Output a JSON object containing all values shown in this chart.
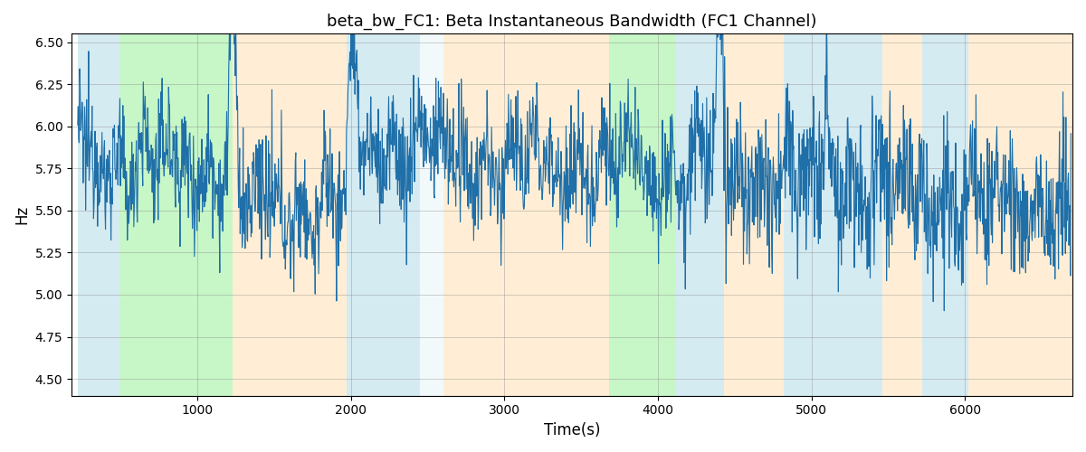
{
  "title": "beta_bw_FC1: Beta Instantaneous Bandwidth (FC1 Channel)",
  "xlabel": "Time(s)",
  "ylabel": "Hz",
  "ylim": [
    4.4,
    6.55
  ],
  "xlim": [
    180,
    6700
  ],
  "yticks": [
    4.5,
    4.75,
    5.0,
    5.25,
    5.5,
    5.75,
    6.0,
    6.25,
    6.5
  ],
  "line_color": "#1f6fa8",
  "line_width": 0.8,
  "background_color": "#ffffff",
  "bands": [
    {
      "xmin": 220,
      "xmax": 490,
      "color": "#add8e6",
      "alpha": 0.5
    },
    {
      "xmin": 490,
      "xmax": 1230,
      "color": "#90ee90",
      "alpha": 0.5
    },
    {
      "xmin": 1230,
      "xmax": 1970,
      "color": "#ffdead",
      "alpha": 0.5
    },
    {
      "xmin": 1970,
      "xmax": 2450,
      "color": "#add8e6",
      "alpha": 0.5
    },
    {
      "xmin": 2450,
      "xmax": 2600,
      "color": "#add8e6",
      "alpha": 0.15
    },
    {
      "xmin": 2600,
      "xmax": 3680,
      "color": "#ffdead",
      "alpha": 0.5
    },
    {
      "xmin": 3680,
      "xmax": 3800,
      "color": "#90ee90",
      "alpha": 0.5
    },
    {
      "xmin": 3800,
      "xmax": 4120,
      "color": "#90ee90",
      "alpha": 0.5
    },
    {
      "xmin": 4120,
      "xmax": 4430,
      "color": "#add8e6",
      "alpha": 0.5
    },
    {
      "xmin": 4430,
      "xmax": 4820,
      "color": "#ffdead",
      "alpha": 0.5
    },
    {
      "xmin": 4820,
      "xmax": 5460,
      "color": "#add8e6",
      "alpha": 0.5
    },
    {
      "xmin": 5460,
      "xmax": 5720,
      "color": "#ffdead",
      "alpha": 0.5
    },
    {
      "xmin": 5720,
      "xmax": 6020,
      "color": "#add8e6",
      "alpha": 0.5
    },
    {
      "xmin": 6020,
      "xmax": 6700,
      "color": "#ffdead",
      "alpha": 0.5
    }
  ],
  "seed": 12345,
  "n_points": 2000,
  "x_start": 220,
  "x_end": 6690,
  "base_value": 5.78,
  "noise_scale": 0.18
}
